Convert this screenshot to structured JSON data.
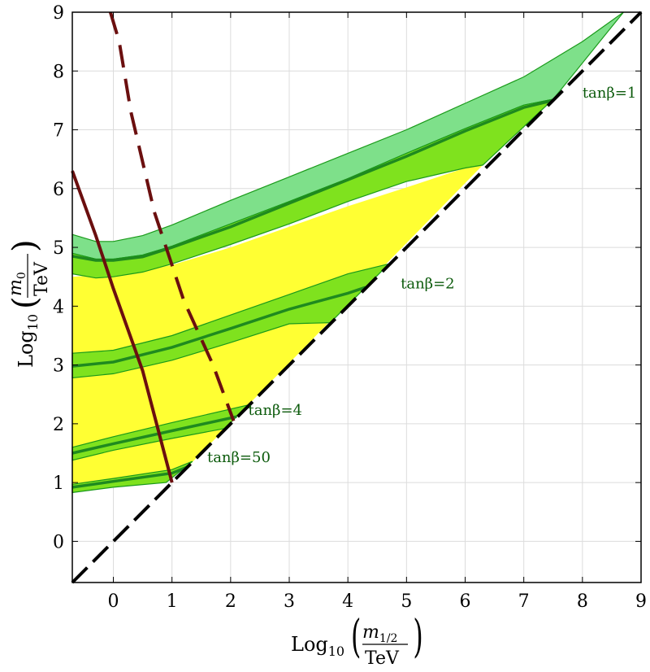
{
  "chart_data": {
    "type": "line",
    "xlabel": {
      "prefix": "Log",
      "sub": "10",
      "num": "m",
      "num_sub": "1/2",
      "den": "TeV"
    },
    "ylabel": {
      "prefix": "Log",
      "sub": "10",
      "num": "m",
      "num_sub": "0",
      "den": "TeV"
    },
    "xlim": [
      -0.7,
      9
    ],
    "ylim": [
      -0.7,
      9
    ],
    "xticks": [
      0,
      1,
      2,
      3,
      4,
      5,
      6,
      7,
      8,
      9
    ],
    "yticks": [
      0,
      1,
      2,
      3,
      4,
      5,
      6,
      7,
      8,
      9
    ],
    "grid": true,
    "colors": {
      "outer_band": "#7ee08a",
      "inner_band": "#7fe21e",
      "yellow_region": "#ffff33",
      "band_edge": "#1a9a1a",
      "central_line": "#1f8a1f",
      "label_color": "#0b5a0b",
      "bound_line": "#6b0f0f",
      "diagonal": "#000000"
    },
    "yellow_region": {
      "upper": [
        [
          -0.7,
          4.5
        ],
        [
          0,
          4.55
        ],
        [
          1,
          4.7
        ],
        [
          2,
          5.0
        ],
        [
          3,
          5.35
        ],
        [
          4,
          5.7
        ],
        [
          5,
          6.02
        ],
        [
          6,
          6.35
        ],
        [
          6.3,
          6.4
        ]
      ],
      "lower": [
        [
          -0.7,
          0.88
        ],
        [
          0,
          0.97
        ],
        [
          1,
          1.1
        ],
        [
          1.3,
          1.3
        ]
      ]
    },
    "bands": [
      {
        "label": "tanβ=1",
        "label_at": [
          8.0,
          7.55
        ],
        "outer_upper": [
          [
            -0.7,
            5.22
          ],
          [
            -0.3,
            5.1
          ],
          [
            0,
            5.1
          ],
          [
            0.5,
            5.2
          ],
          [
            1,
            5.38
          ],
          [
            2,
            5.8
          ],
          [
            3,
            6.2
          ],
          [
            4,
            6.6
          ],
          [
            5,
            7.0
          ],
          [
            6,
            7.45
          ],
          [
            7,
            7.9
          ],
          [
            8,
            8.5
          ],
          [
            8.7,
            9.0
          ]
        ],
        "inner_upper": [
          [
            -0.7,
            4.9
          ],
          [
            -0.3,
            4.8
          ],
          [
            0,
            4.8
          ],
          [
            0.5,
            4.87
          ],
          [
            1,
            5.02
          ],
          [
            2,
            5.4
          ],
          [
            3,
            5.78
          ],
          [
            4,
            6.17
          ],
          [
            5,
            6.6
          ],
          [
            6,
            7.02
          ],
          [
            7,
            7.42
          ],
          [
            7.5,
            7.52
          ]
        ],
        "central": [
          [
            -0.7,
            4.85
          ],
          [
            -0.3,
            4.78
          ],
          [
            0,
            4.78
          ],
          [
            0.5,
            4.84
          ],
          [
            1,
            5.0
          ],
          [
            2,
            5.35
          ],
          [
            3,
            5.75
          ],
          [
            4,
            6.15
          ],
          [
            5,
            6.55
          ],
          [
            6,
            6.98
          ],
          [
            7,
            7.38
          ],
          [
            7.5,
            7.5
          ]
        ],
        "inner_lower": [
          [
            -0.7,
            4.55
          ],
          [
            -0.3,
            4.48
          ],
          [
            0,
            4.5
          ],
          [
            0.5,
            4.58
          ],
          [
            1,
            4.72
          ],
          [
            2,
            5.05
          ],
          [
            3,
            5.4
          ],
          [
            4,
            5.78
          ],
          [
            5,
            6.12
          ],
          [
            6,
            6.35
          ],
          [
            6.3,
            6.4
          ]
        ]
      },
      {
        "label": "tanβ=2",
        "label_at": [
          4.9,
          4.3
        ],
        "outer_upper": [
          [
            -0.7,
            3.2
          ],
          [
            0,
            3.25
          ],
          [
            1,
            3.5
          ],
          [
            2,
            3.85
          ],
          [
            3,
            4.2
          ],
          [
            4,
            4.55
          ],
          [
            4.7,
            4.72
          ]
        ],
        "central": [
          [
            -0.7,
            2.98
          ],
          [
            0,
            3.05
          ],
          [
            1,
            3.3
          ],
          [
            2,
            3.62
          ],
          [
            3,
            3.95
          ],
          [
            4,
            4.22
          ],
          [
            4.3,
            4.32
          ]
        ],
        "outer_lower": [
          [
            -0.7,
            2.78
          ],
          [
            0,
            2.85
          ],
          [
            1,
            3.08
          ],
          [
            2,
            3.38
          ],
          [
            3,
            3.7
          ],
          [
            3.7,
            3.72
          ]
        ]
      },
      {
        "label": "tanβ=4",
        "label_at": [
          2.3,
          2.15
        ],
        "outer_upper": [
          [
            -0.7,
            1.6
          ],
          [
            0,
            1.78
          ],
          [
            1,
            2.02
          ],
          [
            2.3,
            2.32
          ]
        ],
        "central": [
          [
            -0.7,
            1.5
          ],
          [
            0,
            1.66
          ],
          [
            1,
            1.88
          ],
          [
            2.1,
            2.12
          ]
        ],
        "outer_lower": [
          [
            -0.7,
            1.38
          ],
          [
            0,
            1.55
          ],
          [
            1,
            1.75
          ],
          [
            1.9,
            1.92
          ]
        ]
      },
      {
        "label": "tanβ=50",
        "label_at": [
          1.6,
          1.35
        ],
        "outer_upper": [
          [
            -0.7,
            0.97
          ],
          [
            0,
            1.07
          ],
          [
            1,
            1.22
          ],
          [
            1.35,
            1.36
          ]
        ],
        "central": [
          [
            -0.7,
            0.92
          ],
          [
            0,
            1.02
          ],
          [
            1,
            1.16
          ],
          [
            1.25,
            1.26
          ]
        ],
        "outer_lower": [
          [
            -0.7,
            0.83
          ],
          [
            0,
            0.92
          ],
          [
            0.9,
            1.0
          ]
        ]
      }
    ],
    "diagonal_line": {
      "style": "dashed",
      "points": [
        [
          -0.7,
          -0.7
        ],
        [
          9,
          9
        ]
      ]
    },
    "solid_bound": {
      "style": "solid",
      "points": [
        [
          -0.7,
          6.3
        ],
        [
          -0.3,
          5.2
        ],
        [
          0,
          4.3
        ],
        [
          0.5,
          2.9
        ],
        [
          1,
          1.0
        ]
      ]
    },
    "dashed_bound": {
      "style": "dashed",
      "points": [
        [
          -0.05,
          9
        ],
        [
          0.1,
          8.5
        ],
        [
          0.3,
          7.3
        ],
        [
          0.7,
          5.6
        ],
        [
          1.2,
          4.1
        ],
        [
          1.7,
          3.0
        ],
        [
          2.05,
          2.05
        ]
      ]
    }
  }
}
